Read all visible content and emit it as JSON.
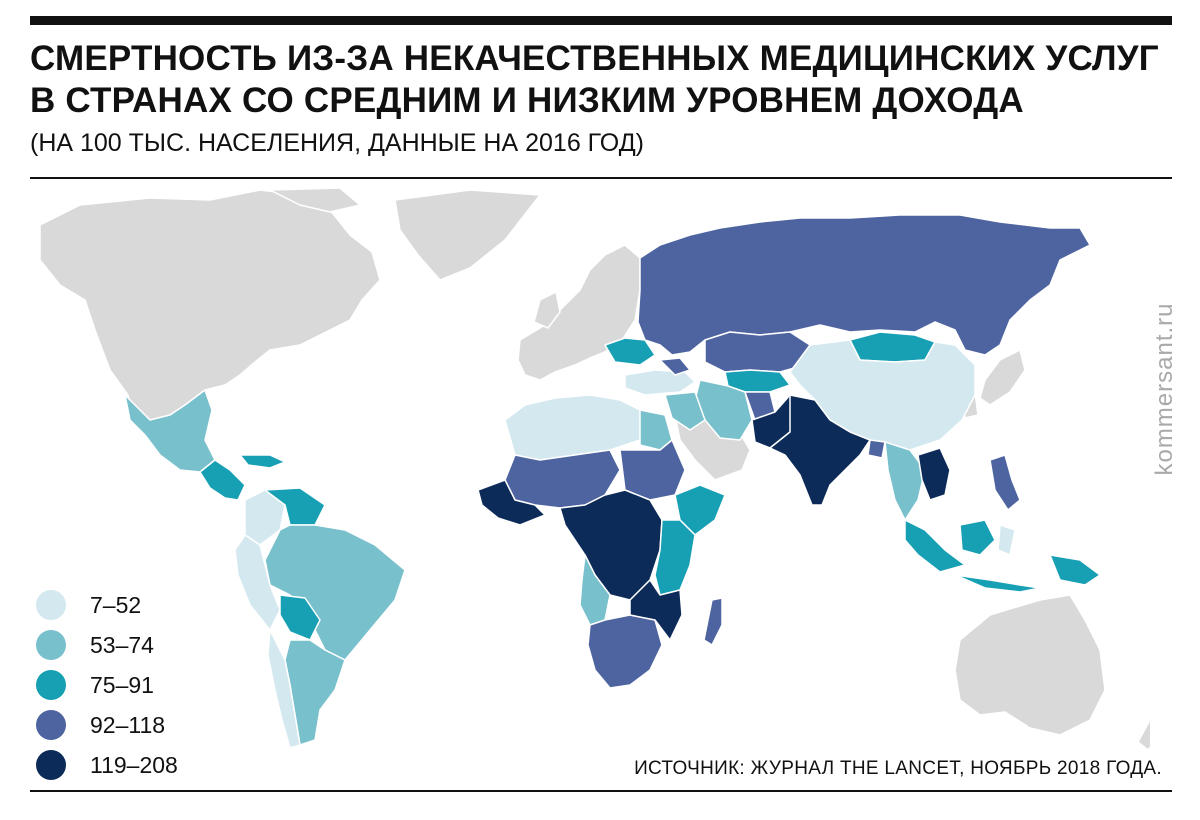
{
  "title": "СМЕРТНОСТЬ ИЗ-ЗА НЕКАЧЕСТВЕННЫХ МЕДИЦИНСКИХ УСЛУГ В СТРАНАХ СО СРЕДНИМ И НИЗКИМ УРОВНЕМ ДОХОДА",
  "subtitle": "(НА 100 ТЫС. НАСЕЛЕНИЯ, ДАННЫЕ НА 2016 ГОД)",
  "source": "ИСТОЧНИК: ЖУРНАЛ THE LANCET, НОЯБРЬ 2018 ГОДА.",
  "brand": "kommersant.ru",
  "colors": {
    "no_data": "#d9d9d9",
    "border": "#ffffff",
    "text": "#111111"
  },
  "legend": [
    {
      "label": "7–52",
      "color": "#d3e8ef"
    },
    {
      "label": "53–74",
      "color": "#78c0cc"
    },
    {
      "label": "75–91",
      "color": "#179fb4"
    },
    {
      "label": "92–118",
      "color": "#4e64a0"
    },
    {
      "label": "119–208",
      "color": "#0d2b59"
    }
  ]
}
